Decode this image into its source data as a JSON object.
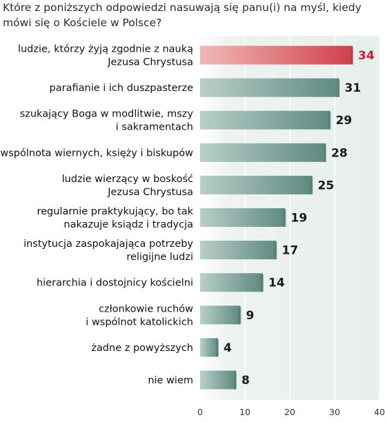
{
  "title": "Które  z poniższych odpowiedzi nasuwają się panu(i) na myśl, kiedy mówi się o Kościele w Polsce?",
  "colors": {
    "bar_normal": "#6f9a90",
    "bar_highlight": "#d9505a",
    "label_highlight": "#c4203a",
    "background": "#eef3f1",
    "grid": "#ffffff"
  },
  "chart_data": {
    "type": "bar",
    "orientation": "horizontal",
    "categories": [
      [
        "ludzie, którzy żyją zgodnie z nauką",
        "Jezusa Chrystusa"
      ],
      [
        "parafianie i ich duszpasterze"
      ],
      [
        "szukający Boga w modlitwie, mszy",
        "i sakramentach"
      ],
      [
        "wspólnota wiernych, księży i biskupów"
      ],
      [
        "ludzie wierzący w boskość",
        "Jezusa Chrystusa"
      ],
      [
        "regularnie praktykujący, bo tak",
        "nakazuje ksiądz i tradycja"
      ],
      [
        "instytucja zaspokajająca potrzeby",
        "religijne ludzi"
      ],
      [
        "hierarchia i dostojnicy kościelni"
      ],
      [
        "członkowie ruchów",
        "i wspólnot katolickich"
      ],
      [
        "żadne z powyższych"
      ],
      [
        "nie wiem"
      ]
    ],
    "values": [
      34,
      31,
      29,
      28,
      25,
      19,
      17,
      14,
      9,
      4,
      8
    ],
    "highlight_index": 0,
    "xlim": [
      0,
      40
    ],
    "xticks": [
      0,
      10,
      20,
      30,
      40
    ],
    "grid": true
  }
}
